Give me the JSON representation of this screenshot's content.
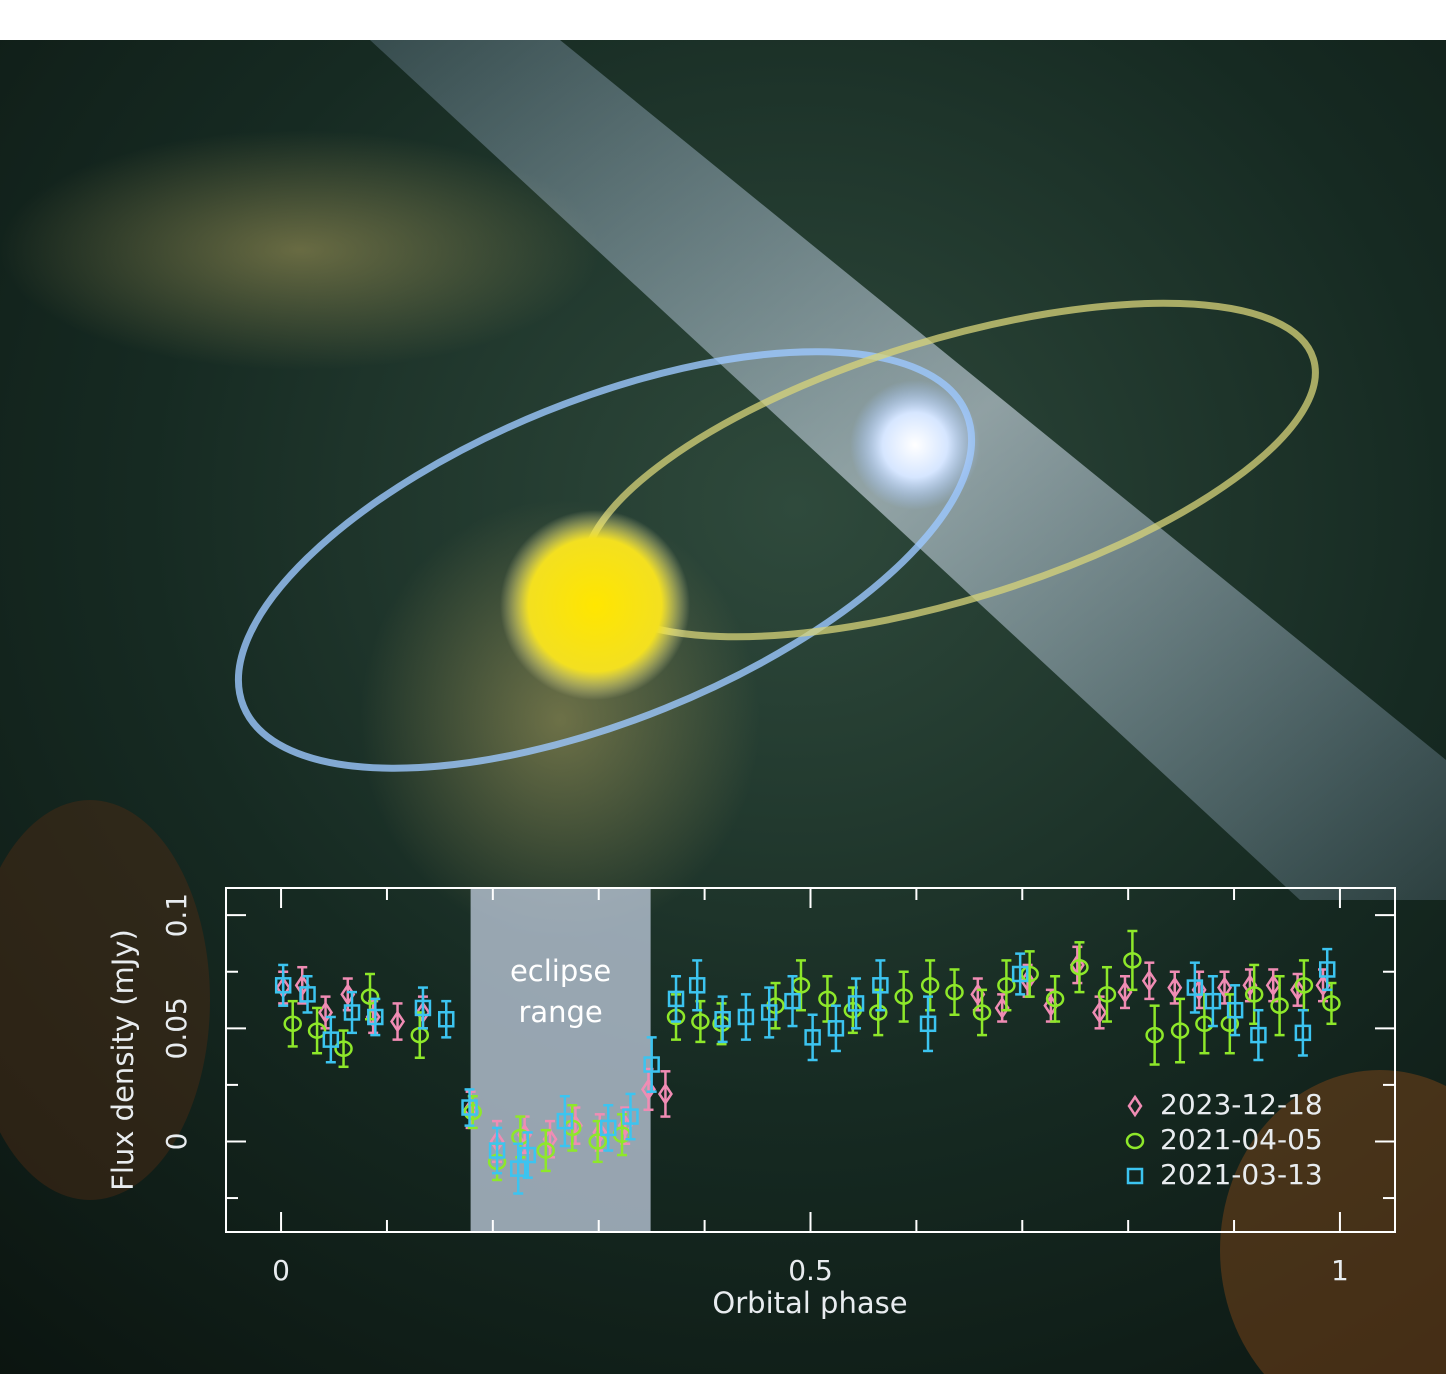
{
  "chart_data": {
    "type": "scatter",
    "xlabel": "Orbital phase",
    "ylabel": "Flux density (mJy)",
    "xlim": [
      -0.052,
      1.052
    ],
    "ylim": [
      -0.04,
      0.112
    ],
    "xticks": [
      0,
      0.5,
      1
    ],
    "xminorticks": [
      0.1,
      0.2,
      0.3,
      0.4,
      0.6,
      0.7,
      0.8,
      0.9
    ],
    "yticks": [
      0,
      0.05,
      0.1
    ],
    "yminorticks": [
      -0.025,
      0.025,
      0.075
    ],
    "legend": "lower right",
    "annotation": {
      "text": [
        "eclipse",
        "range"
      ],
      "xrange": [
        0.179,
        0.349
      ],
      "color": "#b8c4d4"
    },
    "series": [
      {
        "name": "2023-12-18",
        "color": "#f08cb4",
        "marker": "diamond",
        "x": [
          0.002,
          0.02,
          0.042,
          0.063,
          0.087,
          0.11,
          0.134,
          0.179,
          0.204,
          0.23,
          0.254,
          0.278,
          0.301,
          0.325,
          0.347,
          0.363,
          0.658,
          0.681,
          0.705,
          0.727,
          0.752,
          0.773,
          0.797,
          0.82,
          0.844,
          0.867,
          0.891,
          0.915,
          0.937,
          0.96,
          0.984
        ],
        "values": [
          0.068,
          0.069,
          0.057,
          0.065,
          0.055,
          0.053,
          0.057,
          0.014,
          0.0,
          0.003,
          0.001,
          0.007,
          0.004,
          0.007,
          0.023,
          0.021,
          0.065,
          0.059,
          0.071,
          0.06,
          0.078,
          0.057,
          0.066,
          0.071,
          0.068,
          0.067,
          0.068,
          0.069,
          0.069,
          0.067,
          0.069
        ],
        "errors": [
          0.007,
          0.008,
          0.007,
          0.007,
          0.007,
          0.008,
          0.007,
          0.008,
          0.009,
          0.008,
          0.008,
          0.008,
          0.008,
          0.008,
          0.009,
          0.01,
          0.007,
          0.006,
          0.007,
          0.007,
          0.008,
          0.007,
          0.007,
          0.008,
          0.007,
          0.008,
          0.007,
          0.007,
          0.007,
          0.007,
          0.007
        ]
      },
      {
        "name": "2021-04-05",
        "color": "#8ee82a",
        "marker": "circle",
        "x": [
          0.011,
          0.034,
          0.059,
          0.084,
          0.131,
          0.181,
          0.204,
          0.226,
          0.25,
          0.275,
          0.299,
          0.322,
          0.373,
          0.396,
          0.416,
          0.467,
          0.491,
          0.516,
          0.54,
          0.564,
          0.588,
          0.613,
          0.636,
          0.662,
          0.685,
          0.707,
          0.731,
          0.754,
          0.78,
          0.804,
          0.825,
          0.849,
          0.872,
          0.896,
          0.919,
          0.943,
          0.966,
          0.992
        ],
        "values": [
          0.052,
          0.049,
          0.041,
          0.064,
          0.047,
          0.013,
          -0.009,
          0.002,
          -0.004,
          0.006,
          0.0,
          0.003,
          0.055,
          0.053,
          0.052,
          0.06,
          0.069,
          0.063,
          0.058,
          0.057,
          0.064,
          0.069,
          0.066,
          0.057,
          0.069,
          0.074,
          0.063,
          0.077,
          0.065,
          0.08,
          0.047,
          0.049,
          0.052,
          0.052,
          0.065,
          0.06,
          0.069,
          0.061
        ],
        "errors": [
          0.01,
          0.01,
          0.008,
          0.01,
          0.01,
          0.007,
          0.008,
          0.009,
          0.009,
          0.01,
          0.009,
          0.009,
          0.01,
          0.009,
          0.009,
          0.01,
          0.011,
          0.01,
          0.01,
          0.01,
          0.011,
          0.011,
          0.01,
          0.01,
          0.011,
          0.01,
          0.01,
          0.011,
          0.012,
          0.013,
          0.013,
          0.014,
          0.013,
          0.013,
          0.013,
          0.013,
          0.011,
          0.009
        ]
      },
      {
        "name": "2021-03-13",
        "color": "#3cc4f0",
        "marker": "square",
        "x": [
          0.002,
          0.025,
          0.047,
          0.067,
          0.089,
          0.134,
          0.156,
          0.178,
          0.204,
          0.224,
          0.233,
          0.268,
          0.309,
          0.33,
          0.35,
          0.373,
          0.393,
          0.417,
          0.439,
          0.461,
          0.483,
          0.502,
          0.524,
          0.543,
          0.566,
          0.611,
          0.698,
          0.863,
          0.88,
          0.901,
          0.923,
          0.965,
          0.988
        ],
        "values": [
          0.069,
          0.065,
          0.045,
          0.057,
          0.055,
          0.059,
          0.054,
          0.015,
          -0.004,
          -0.012,
          -0.006,
          0.009,
          0.006,
          0.011,
          0.034,
          0.063,
          0.069,
          0.054,
          0.055,
          0.057,
          0.062,
          0.046,
          0.05,
          0.061,
          0.069,
          0.052,
          0.074,
          0.068,
          0.062,
          0.058,
          0.047,
          0.048,
          0.076
        ],
        "errors": [
          0.009,
          0.008,
          0.01,
          0.009,
          0.008,
          0.009,
          0.008,
          0.008,
          0.01,
          0.011,
          0.01,
          0.011,
          0.01,
          0.01,
          0.012,
          0.01,
          0.011,
          0.01,
          0.01,
          0.011,
          0.011,
          0.01,
          0.01,
          0.011,
          0.011,
          0.012,
          0.009,
          0.011,
          0.011,
          0.011,
          0.011,
          0.01,
          0.009
        ]
      }
    ]
  }
}
